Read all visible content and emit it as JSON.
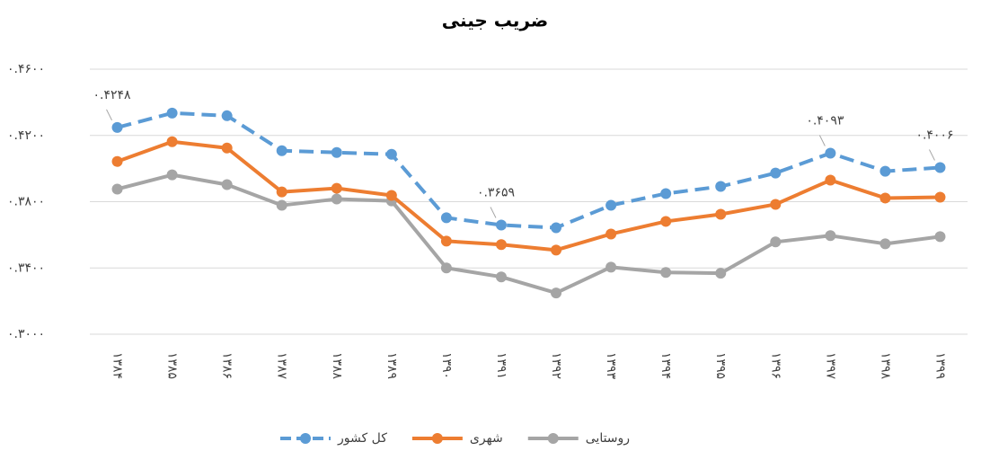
{
  "chart_data": {
    "type": "line",
    "title": "ضریب جینی",
    "categories": [
      "۱۳۸۴",
      "۱۳۸۵",
      "۱۳۸۶",
      "۱۳۸۷",
      "۱۳۸۸",
      "۱۳۸۹",
      "۱۳۹۰",
      "۱۳۹۱",
      "۱۳۹۲",
      "۱۳۹۳",
      "۱۳۹۴",
      "۱۳۹۵",
      "۱۳۹۶",
      "۱۳۹۷",
      "۱۳۹۸",
      "۱۳۹۹"
    ],
    "series": [
      {
        "name": "کل کشور",
        "color": "#5b9bd5",
        "dashed": true,
        "values": [
          0.4248,
          0.4335,
          0.4319,
          0.4108,
          0.4097,
          0.4086,
          0.3703,
          0.3659,
          0.3643,
          0.3778,
          0.3849,
          0.3892,
          0.3973,
          0.4093,
          0.3984,
          0.4006
        ],
        "value_labels": [
          "۰.۴۲۴۸",
          null,
          null,
          null,
          null,
          null,
          null,
          "۰.۳۶۵۹",
          null,
          null,
          null,
          null,
          null,
          "۰.۴۰۹۳",
          null,
          "۰.۴۰۰۶"
        ]
      },
      {
        "name": "شهری",
        "color": "#ed7d31",
        "values": [
          0.4043,
          0.4162,
          0.4124,
          0.3859,
          0.3881,
          0.3838,
          0.3562,
          0.3541,
          0.3508,
          0.3605,
          0.3681,
          0.3724,
          0.3784,
          0.393,
          0.3822,
          0.3827
        ]
      },
      {
        "name": "روستایی",
        "color": "#a5a5a5",
        "values": [
          0.3876,
          0.3962,
          0.3903,
          0.3778,
          0.3816,
          0.3805,
          0.34,
          0.3346,
          0.3249,
          0.3405,
          0.3373,
          0.3368,
          0.3557,
          0.3595,
          0.3546,
          0.3589
        ]
      }
    ],
    "ylim": [
      0.3,
      0.46
    ],
    "yticks": [
      {
        "value": 0.3,
        "label": "۰.۳۰۰۰"
      },
      {
        "value": 0.34,
        "label": "۰.۳۴۰۰"
      },
      {
        "value": 0.38,
        "label": "۰.۳۸۰۰"
      },
      {
        "value": 0.42,
        "label": "۰.۴۲۰۰"
      },
      {
        "value": 0.46,
        "label": "۰.۴۶۰۰"
      }
    ],
    "grid": true,
    "legend": "bottom"
  }
}
